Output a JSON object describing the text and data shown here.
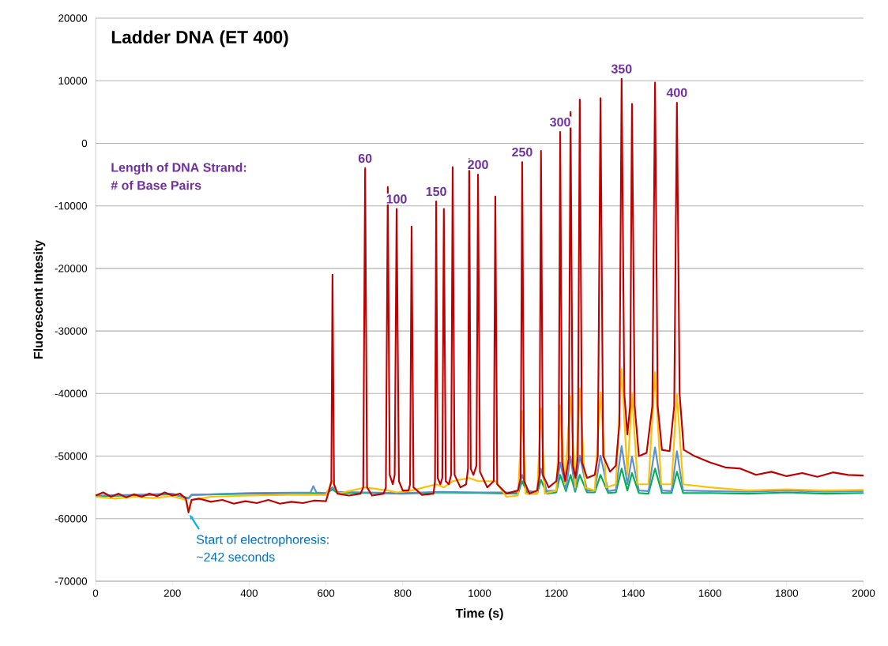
{
  "chart_data": {
    "type": "line",
    "title": "Ladder DNA (ET 400)",
    "xlabel": "Time (s)",
    "ylabel": "Fluorescent Intesity",
    "xlim": [
      0,
      2000
    ],
    "xticks": [
      0,
      200,
      400,
      600,
      800,
      1000,
      1200,
      1400,
      1600,
      1800,
      2000
    ],
    "ylim": [
      -70000,
      20000
    ],
    "yticks": [
      -70000,
      -60000,
      -50000,
      -40000,
      -30000,
      -20000,
      -10000,
      0,
      10000,
      20000
    ],
    "grid": "y",
    "marker": "none",
    "line_style": "solid",
    "annotations": [
      {
        "text": "60",
        "x": 702,
        "y": -4000
      },
      {
        "text": "100",
        "x": 784,
        "y": -10500
      },
      {
        "text": "150",
        "x": 887,
        "y": -9300
      },
      {
        "text": "200",
        "x": 996,
        "y": -5000
      },
      {
        "text": "250",
        "x": 1111,
        "y": -3000
      },
      {
        "text": "300",
        "x": 1210,
        "y": 1800
      },
      {
        "text": "350",
        "x": 1370,
        "y": 10300
      },
      {
        "text": "400",
        "x": 1514,
        "y": 6500
      },
      "Length of DNA Strand:",
      "# of Base Pairs",
      {
        "text": "Start of electrophoresis:",
        "x": 242,
        "y": -59000
      },
      "~242 seconds"
    ],
    "series": [
      {
        "color": "#00b050",
        "x": [
          0,
          100,
          200,
          242,
          250,
          400,
          560,
          600,
          617,
          630,
          700,
          800,
          900,
          1000,
          1100,
          1111,
          1125,
          1150,
          1160,
          1175,
          1200,
          1210,
          1225,
          1237,
          1249,
          1261,
          1280,
          1300,
          1315,
          1335,
          1355,
          1370,
          1385,
          1397,
          1415,
          1440,
          1457,
          1475,
          1500,
          1514,
          1530,
          1600,
          1700,
          1800,
          1900,
          2000
        ],
        "values": [
          -56400,
          -56300,
          -56100,
          -56700,
          -56200,
          -56000,
          -55900,
          -56000,
          -55300,
          -55900,
          -55900,
          -56000,
          -55800,
          -55900,
          -56000,
          -54000,
          -56000,
          -56000,
          -53800,
          -56000,
          -55800,
          -53000,
          -55600,
          -53000,
          -55700,
          -53000,
          -55800,
          -55800,
          -53000,
          -55900,
          -55800,
          -52000,
          -55500,
          -52700,
          -55900,
          -56000,
          -52000,
          -55900,
          -55900,
          -52500,
          -55900,
          -55900,
          -56000,
          -55800,
          -56000,
          -55900
        ]
      },
      {
        "color": "#5b8fd0",
        "x": [
          0,
          100,
          200,
          242,
          250,
          400,
          560,
          567,
          575,
          600,
          617,
          630,
          700,
          800,
          900,
          1000,
          1100,
          1111,
          1125,
          1150,
          1160,
          1175,
          1200,
          1210,
          1225,
          1237,
          1249,
          1261,
          1280,
          1300,
          1315,
          1335,
          1355,
          1370,
          1385,
          1397,
          1415,
          1440,
          1457,
          1475,
          1500,
          1514,
          1530,
          1600,
          1700,
          1800,
          1900,
          2000
        ],
        "values": [
          -56300,
          -56200,
          -56000,
          -56800,
          -56200,
          -55900,
          -55800,
          -54800,
          -55800,
          -55900,
          -55000,
          -55700,
          -55800,
          -55900,
          -55700,
          -55800,
          -55800,
          -53000,
          -55600,
          -55700,
          -52000,
          -55600,
          -55500,
          -51000,
          -55300,
          -50000,
          -55400,
          -49900,
          -55500,
          -55500,
          -49900,
          -55600,
          -55400,
          -48400,
          -54500,
          -50100,
          -55500,
          -55600,
          -48600,
          -55500,
          -55600,
          -49200,
          -55500,
          -55600,
          -55700,
          -55500,
          -55700,
          -55600
        ]
      },
      {
        "color": "#ffc000",
        "x": [
          0,
          50,
          100,
          150,
          200,
          235,
          242,
          250,
          300,
          400,
          500,
          600,
          617,
          630,
          702,
          761,
          784,
          823,
          887,
          907,
          930,
          973,
          996,
          1041,
          1070,
          1100,
          1111,
          1120,
          1150,
          1160,
          1170,
          1200,
          1210,
          1222,
          1237,
          1249,
          1261,
          1275,
          1300,
          1315,
          1330,
          1355,
          1370,
          1385,
          1397,
          1412,
          1440,
          1457,
          1473,
          1500,
          1514,
          1530,
          1600,
          1700,
          1800,
          1900,
          2000
        ],
        "values": [
          -56500,
          -56800,
          -56500,
          -56700,
          -56400,
          -57000,
          -58500,
          -57000,
          -56500,
          -56300,
          -56200,
          -56200,
          -54000,
          -56000,
          -55000,
          -55500,
          -55800,
          -55500,
          -54500,
          -55000,
          -54000,
          -53500,
          -54000,
          -54000,
          -56500,
          -56300,
          -42800,
          -56000,
          -56000,
          -42400,
          -56000,
          -55500,
          -41900,
          -54500,
          -40400,
          -55000,
          -39200,
          -55000,
          -55500,
          -39800,
          -55000,
          -54500,
          -36100,
          -53000,
          -40000,
          -54500,
          -54500,
          -36600,
          -54500,
          -54500,
          -40100,
          -54500,
          -55000,
          -55500,
          -55300,
          -55500,
          -55400
        ]
      },
      {
        "color": "#c00000",
        "x": [
          0,
          20,
          40,
          60,
          80,
          100,
          120,
          140,
          160,
          180,
          200,
          220,
          235,
          242,
          250,
          270,
          300,
          330,
          360,
          390,
          420,
          450,
          480,
          510,
          540,
          570,
          600,
          608,
          614,
          617,
          621,
          630,
          660,
          690,
          697,
          702,
          707,
          720,
          750,
          756,
          761,
          766,
          774,
          779,
          784,
          790,
          800,
          815,
          819,
          823,
          828,
          850,
          880,
          884,
          887,
          891,
          898,
          903,
          907,
          912,
          920,
          926,
          930,
          935,
          950,
          965,
          970,
          973,
          977,
          984,
          992,
          996,
          1001,
          1020,
          1037,
          1041,
          1046,
          1070,
          1100,
          1107,
          1111,
          1116,
          1130,
          1150,
          1156,
          1160,
          1165,
          1180,
          1200,
          1206,
          1210,
          1215,
          1223,
          1232,
          1237,
          1243,
          1250,
          1256,
          1261,
          1267,
          1280,
          1300,
          1308,
          1315,
          1322,
          1340,
          1355,
          1364,
          1370,
          1377,
          1385,
          1392,
          1397,
          1404,
          1415,
          1435,
          1450,
          1457,
          1464,
          1475,
          1495,
          1507,
          1514,
          1521,
          1532,
          1560,
          1600,
          1640,
          1680,
          1720,
          1760,
          1800,
          1840,
          1880,
          1920,
          1960,
          2000
        ],
        "values": [
          -56300,
          -55800,
          -56500,
          -56000,
          -56600,
          -56100,
          -56500,
          -56000,
          -56400,
          -55800,
          -56300,
          -56000,
          -56800,
          -59000,
          -57000,
          -56800,
          -57300,
          -57000,
          -57600,
          -57200,
          -57500,
          -57000,
          -57600,
          -57300,
          -57500,
          -57100,
          -57200,
          -55500,
          -54000,
          -21000,
          -54500,
          -56000,
          -56300,
          -56000,
          -55000,
          -4000,
          -55000,
          -56300,
          -56000,
          -55000,
          -7000,
          -53000,
          -54500,
          -53000,
          -10500,
          -54000,
          -55500,
          -55500,
          -54500,
          -13300,
          -55000,
          -56200,
          -56000,
          -54000,
          -9300,
          -53500,
          -54500,
          -53500,
          -10500,
          -54000,
          -54500,
          -53000,
          -3800,
          -53000,
          -55000,
          -54500,
          -52000,
          -2500,
          -52000,
          -53000,
          -51500,
          -5000,
          -52500,
          -55000,
          -54000,
          -8500,
          -54500,
          -56000,
          -55500,
          -53500,
          -3000,
          -54000,
          -56000,
          -55500,
          -53000,
          -1200,
          -53000,
          -55000,
          -54000,
          -51000,
          1800,
          -51000,
          -54000,
          -50500,
          5000,
          -51500,
          -53500,
          -50000,
          7000,
          -51000,
          -53500,
          -53000,
          -50000,
          7200,
          -50000,
          -52500,
          -51500,
          -45000,
          10300,
          -40000,
          -46500,
          -42000,
          6300,
          -42000,
          -50000,
          -49500,
          -42000,
          9700,
          -42000,
          -49000,
          -49200,
          -42000,
          6500,
          -40000,
          -49000,
          -50000,
          -51000,
          -51800,
          -52000,
          -53000,
          -52500,
          -53200,
          -52700,
          -53300,
          -52600,
          -53000,
          -53100
        ]
      }
    ]
  }
}
